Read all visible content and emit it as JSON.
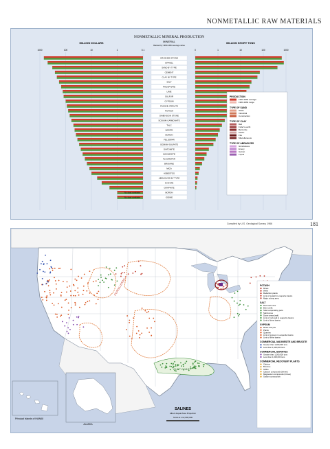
{
  "page": {
    "header": "NONMETALLIC RAW MATERIALS",
    "page_number": "181",
    "source_note": "Compiled by U.S. Geological Survey, 1966"
  },
  "chart_data": {
    "type": "bar",
    "title": "NONMETALLIC MINERAL PRODUCTION",
    "subtitle_left": "MILLION DOLLARS",
    "subtitle_right": "MILLION SHORT TONS",
    "center_header": "MINERAL",
    "center_subheader": "Ranked by 1963-1964 average value",
    "left_axis": {
      "scale": "log",
      "ticks": [
        "1000",
        "100",
        "10",
        "1",
        "0.1"
      ]
    },
    "right_axis": {
      "scale": "log",
      "ticks": [
        "0",
        "1",
        "10",
        "100",
        "1000"
      ]
    },
    "categories": [
      "CRUSHED STONE",
      "GRAVEL",
      "SAND BY TYPE",
      "CEMENT",
      "CLAY BY TYPE",
      "SALT",
      "PHOSPHATE",
      "LIME",
      "SULFUR",
      "GYPSUM",
      "PUMICE, PERLITE",
      "POTASH",
      "DIMENSION STONE",
      "SODIUM CARBONATE",
      "TALC",
      "BARITE",
      "BORON",
      "FELDSPAR",
      "SODIUM SULFATE",
      "DIATOMITE",
      "MAGNESITE",
      "FLUORSPAR",
      "BROMINE",
      "MICA",
      "ASBESTOS",
      "ABRASIVES BY TYPE",
      "KYANITE",
      "GRAPHITE",
      "BORON_2",
      "IODINE"
    ],
    "series": [
      {
        "name": "1963-1964 average",
        "unit": "million dollars",
        "values": [
          700,
          500,
          330,
          260,
          220,
          180,
          150,
          130,
          120,
          100,
          90,
          80,
          70,
          60,
          50,
          45,
          40,
          35,
          30,
          26,
          22,
          18,
          15,
          12,
          10,
          6,
          4,
          2,
          1,
          1
        ]
      },
      {
        "name": "1963-1964 average",
        "unit": "million short tons",
        "values": [
          650,
          800,
          420,
          70,
          55,
          30,
          25,
          18,
          8,
          11,
          4,
          3,
          2.5,
          2,
          1.5,
          1.2,
          1,
          0.9,
          0.8,
          0.6,
          0.5,
          0.4,
          0.3,
          0.2,
          0.15,
          0.1,
          0.08,
          0.05,
          0,
          0
        ]
      }
    ],
    "legend": {
      "production_title": "PRODUCTION",
      "production_items": [
        "1963-1964 average",
        "1963-1964 range"
      ],
      "sand_title": "TYPE OF SAND",
      "sand_items": [
        "Glass",
        "Industrial",
        "Construction"
      ],
      "clay_title": "TYPE OF CLAY",
      "clay_items": [
        "Ball",
        "Fuller's earth",
        "Bentonite",
        "Kaolin",
        "Fire",
        "Miscellaneous"
      ],
      "abrasive_title": "TYPE OF ABRASIVES",
      "abrasive_items": [
        "Grindstones",
        "Emery",
        "Garnet",
        "Tripoli"
      ],
      "placement": "right"
    },
    "no_data_labels": [
      "No data available",
      "No data available"
    ],
    "colors": {
      "red": "#d23a2c",
      "green": "#4c9a3b",
      "range": "#f0b9b0",
      "sand": "#c75b3a",
      "clay": "#7a2a2a",
      "abrasive": "#b979c4"
    }
  },
  "map": {
    "title": "SALINES",
    "subtitle": "Albers Equal Area Projection",
    "scale_label": "SCALE 1:12,000,000",
    "inset_hawaii": "Principal Islands of HAWAII",
    "inset_alaska": "ALASKA",
    "region_labels": [
      "CORDILLERAN",
      "GULF COAST"
    ],
    "legend": {
      "potash_title": "POTASH",
      "potash_items": [
        "Mines",
        "Wells",
        "Reduction plants",
        "Limit of potash in evaporite basins",
        "Major mining area"
      ],
      "salt_title": "SALT",
      "salt_items": [
        "Rock salt mine",
        "Brine wells",
        "Solar evaporating pans",
        "Salt domes",
        "Dome areas (salt)",
        "Limit of rock salt in evaporite basins",
        "Limit of brine basins"
      ],
      "gypsum_title": "GYPSUM",
      "gypsum_items": [
        "Mines and pits",
        "Plants",
        "Quarries",
        "Limit of gypsum in evaporite basins",
        "Limit of brine basins"
      ],
      "magnesite_title": "COMMERCIAL MAGNESITE AND BRUCITE",
      "magnesite_items": [
        "Greater than 1,000,000 tons",
        "Less than 1,000,000 tons"
      ],
      "borates_title": "COMMERCIAL BORATES",
      "borates_items": [
        "Greater than 1,000,000 tons",
        "Less than 1,000,000 tons"
      ],
      "recovery_title": "COMMERCIAL RECOVERY PLANTS",
      "recovery_items": [
        "Calcium",
        "Bromine",
        "Iodine",
        "Calcium compounds (brines)",
        "Magnesium compounds (brines)",
        "Sodium compounds"
      ]
    },
    "colors": {
      "potash": "#c0392b",
      "salt": "#3b8f3a",
      "gypsum": "#d9541e",
      "magnesite": "#2f4fae",
      "borates": "#7d3fa8",
      "recovery": "#e0a020",
      "land": "#ffffff",
      "water": "#c8d4e8",
      "boundary": "#9aa4b2"
    }
  }
}
